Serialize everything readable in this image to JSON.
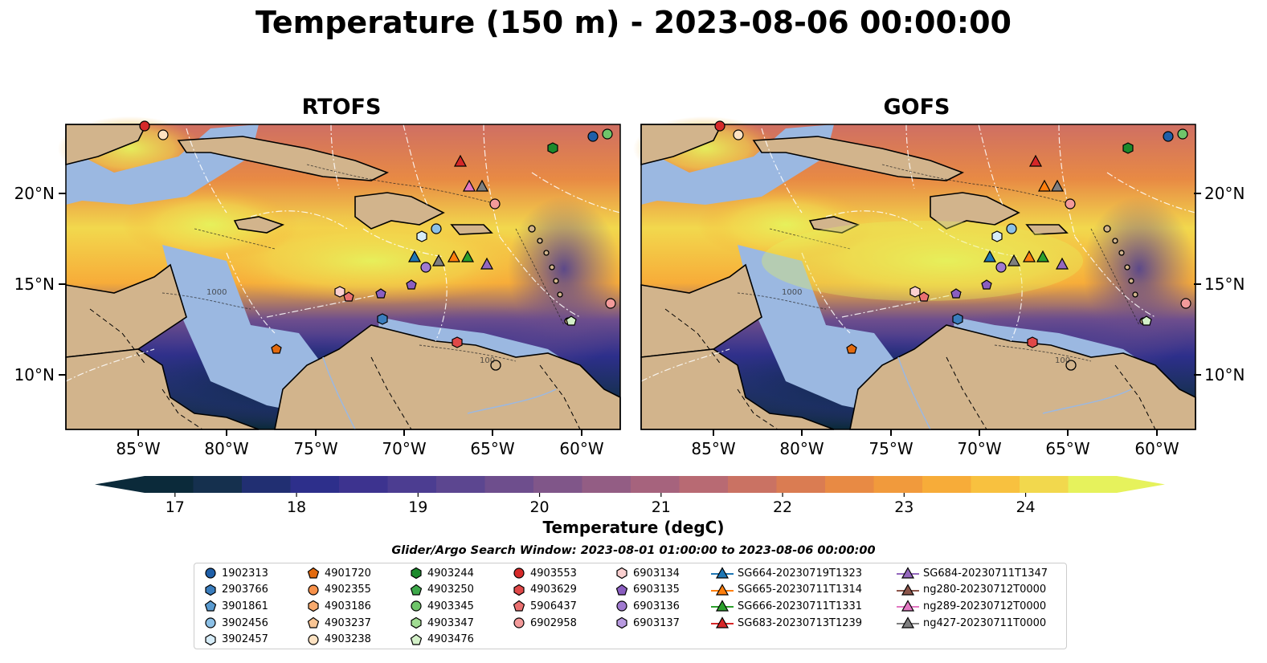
{
  "figure": {
    "title": "Temperature (150 m) - 2023-08-06 00:00:00",
    "panels": [
      {
        "title": "RTOFS"
      },
      {
        "title": "GOFS"
      }
    ],
    "lat_ticks": [
      "20°N",
      "15°N",
      "10°N"
    ],
    "lon_ticks": [
      "85°W",
      "80°W",
      "75°W",
      "70°W",
      "65°W",
      "60°W"
    ],
    "colorbar": {
      "label": "Temperature (degC)",
      "ticks": [
        "17",
        "18",
        "19",
        "20",
        "21",
        "22",
        "23",
        "24"
      ],
      "range": [
        16.75,
        24.75
      ],
      "extend": "both",
      "colors": [
        "#0b2a3a",
        "#15304e",
        "#212f72",
        "#2d2f8b",
        "#3d338f",
        "#4c3d91",
        "#5c4690",
        "#6e4e8d",
        "#805689",
        "#935d84",
        "#a6637d",
        "#b86a73",
        "#ca7263",
        "#da7c52",
        "#e88a44",
        "#f19a3c",
        "#f7ac39",
        "#f8c13f",
        "#f2d84d",
        "#e6f25c"
      ]
    },
    "search_window": "Glider/Argo Search Window: 2023-08-01 01:00:00 to 2023-08-06 00:00:00",
    "contour_labels": [
      "100",
      "1000"
    ],
    "colors": {
      "land": "#d2b48c",
      "shallow_water": "#9bb8e1",
      "coastline": "#000000",
      "eez_lines": "#ffffff"
    }
  },
  "legend": [
    {
      "label": "1902313",
      "marker": "circle",
      "color": "#1f5fa8"
    },
    {
      "label": "2903766",
      "marker": "hexagon",
      "color": "#3a7dbd"
    },
    {
      "label": "3901861",
      "marker": "pentagon",
      "color": "#5a9bd0"
    },
    {
      "label": "3902456",
      "marker": "circle",
      "color": "#8cc0e6"
    },
    {
      "label": "3902457",
      "marker": "hexagon",
      "color": "#d6ecf8"
    },
    {
      "label": "4901720",
      "marker": "pentagon",
      "color": "#e36a0e"
    },
    {
      "label": "4902355",
      "marker": "circle",
      "color": "#f7914a"
    },
    {
      "label": "4903186",
      "marker": "hexagon",
      "color": "#f8aa6e"
    },
    {
      "label": "4903237",
      "marker": "pentagon",
      "color": "#f9c594"
    },
    {
      "label": "4903238",
      "marker": "circle",
      "color": "#fde2c2"
    },
    {
      "label": "4903244",
      "marker": "hexagon",
      "color": "#1c8a2c"
    },
    {
      "label": "4903250",
      "marker": "pentagon",
      "color": "#3da84a"
    },
    {
      "label": "4903345",
      "marker": "circle",
      "color": "#6fc56a"
    },
    {
      "label": "4903347",
      "marker": "hexagon",
      "color": "#a1dc93"
    },
    {
      "label": "4903476",
      "marker": "pentagon",
      "color": "#d3f0c8"
    },
    {
      "label": "4903553",
      "marker": "circle",
      "color": "#d62a2a"
    },
    {
      "label": "4903629",
      "marker": "hexagon",
      "color": "#e04848"
    },
    {
      "label": "5906437",
      "marker": "pentagon",
      "color": "#ea7070"
    },
    {
      "label": "6902958",
      "marker": "circle",
      "color": "#f39a9a"
    },
    {
      "label": "6903134",
      "marker": "hexagon",
      "color": "#fbd0d0"
    },
    {
      "label": "6903135",
      "marker": "pentagon",
      "color": "#8a5ec0"
    },
    {
      "label": "6903136",
      "marker": "circle",
      "color": "#a07ad0"
    },
    {
      "label": "6903137",
      "marker": "hexagon",
      "color": "#b89ae0"
    },
    {
      "label": "SG664-20230719T1323",
      "marker": "triangle-line",
      "color": "#1f77b4"
    },
    {
      "label": "SG665-20230711T1314",
      "marker": "triangle-line",
      "color": "#ff7f0e"
    },
    {
      "label": "SG666-20230711T1331",
      "marker": "triangle-line",
      "color": "#2ca02c"
    },
    {
      "label": "SG683-20230713T1239",
      "marker": "triangle-line",
      "color": "#d62728"
    },
    {
      "label": "SG684-20230711T1347",
      "marker": "triangle-line",
      "color": "#9467bd"
    },
    {
      "label": "ng280-20230712T0000",
      "marker": "triangle-line",
      "color": "#8c564b"
    },
    {
      "label": "ng289-20230712T0000",
      "marker": "triangle-line",
      "color": "#e377c2"
    },
    {
      "label": "ng427-20230711T0000",
      "marker": "triangle-line",
      "color": "#7f7f7f"
    }
  ]
}
